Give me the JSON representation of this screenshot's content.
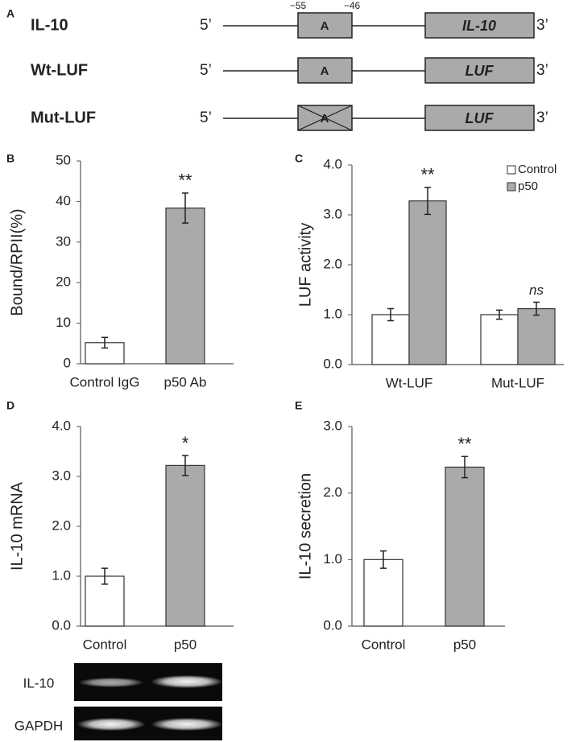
{
  "diagram": {
    "panel": "A",
    "positions": [
      "−55",
      "−46"
    ],
    "rows": [
      {
        "name": "IL-10",
        "five": "5’",
        "site": "A",
        "gene": "IL-10",
        "three": "3’"
      },
      {
        "name": "Wt-LUF",
        "five": "5’",
        "site": "A",
        "gene": "LUF",
        "three": "3’"
      },
      {
        "name": "Mut-LUF",
        "five": "5’",
        "site": "A",
        "gene": "LUF",
        "three": "3’"
      }
    ]
  },
  "chart_data": [
    {
      "type": "bar",
      "panel": "B",
      "y_label": "Bound/RPII(%)",
      "categories": [
        "Control IgG",
        "p50 Ab"
      ],
      "series": [
        {
          "colors": [
            "#ffffff",
            "#aaaaaa"
          ],
          "values": [
            5.2,
            38.4
          ],
          "errors": [
            1.3,
            3.7
          ],
          "annotations": [
            null,
            "**"
          ]
        }
      ],
      "ylim": [
        0,
        50
      ],
      "yticks": [
        0,
        10,
        20,
        30,
        40,
        50
      ]
    },
    {
      "type": "bar",
      "panel": "C",
      "y_label": "LUF activity",
      "categories": [
        "Wt-LUF",
        "Mut-LUF"
      ],
      "legend": "top-right",
      "series": [
        {
          "name": "Control",
          "color": "#ffffff",
          "values": [
            1.0,
            1.0
          ],
          "errors": [
            0.12,
            0.09
          ],
          "annotations": [
            null,
            null
          ]
        },
        {
          "name": "p50",
          "color": "#aaaaaa",
          "values": [
            3.28,
            1.12
          ],
          "errors": [
            0.27,
            0.13
          ],
          "annotations": [
            "**",
            "ns"
          ]
        }
      ],
      "ylim": [
        0,
        4
      ],
      "yticks": [
        {
          "value": 0,
          "label": "0.0"
        },
        {
          "value": 1,
          "label": "1.0"
        },
        {
          "value": 2,
          "label": "2.0"
        },
        {
          "value": 3,
          "label": "3.0"
        },
        {
          "value": 4,
          "label": "4.0"
        }
      ]
    },
    {
      "type": "bar",
      "panel": "D",
      "y_label": "IL-10 mRNA",
      "categories": [
        "Control",
        "p50"
      ],
      "series": [
        {
          "colors": [
            "#ffffff",
            "#aaaaaa"
          ],
          "values": [
            1.0,
            3.22
          ],
          "errors": [
            0.16,
            0.2
          ],
          "annotations": [
            null,
            "*"
          ]
        }
      ],
      "ylim": [
        0,
        4
      ],
      "yticks": [
        {
          "value": 0,
          "label": "0.0"
        },
        {
          "value": 1,
          "label": "1.0"
        },
        {
          "value": 2,
          "label": "2.0"
        },
        {
          "value": 3,
          "label": "3.0"
        },
        {
          "value": 4,
          "label": "4.0"
        }
      ]
    },
    {
      "type": "bar",
      "panel": "E",
      "y_label": "IL-10 secretion",
      "categories": [
        "Control",
        "p50"
      ],
      "series": [
        {
          "colors": [
            "#ffffff",
            "#aaaaaa"
          ],
          "values": [
            1.0,
            2.39
          ],
          "errors": [
            0.13,
            0.16
          ],
          "annotations": [
            null,
            "**"
          ]
        }
      ],
      "ylim": [
        0,
        3
      ],
      "yticks": [
        {
          "value": 0,
          "label": "0.0"
        },
        {
          "value": 1,
          "label": "1.0"
        },
        {
          "value": 2,
          "label": "2.0"
        },
        {
          "value": 3,
          "label": "3.0"
        }
      ]
    }
  ],
  "gel": {
    "rows": [
      "IL-10",
      "GAPDH"
    ]
  }
}
